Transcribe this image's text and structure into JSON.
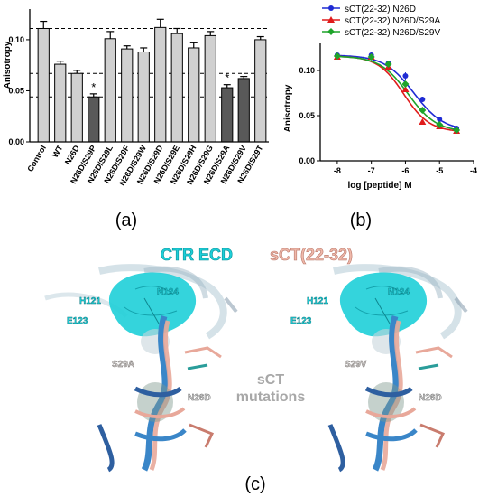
{
  "panel_labels": {
    "a": "(a)",
    "b": "(b)",
    "c": "(c)"
  },
  "chart_data": [
    {
      "type": "bar",
      "ylabel": "Anisotropy",
      "ylim": [
        0,
        0.13
      ],
      "yticks": [
        "0.00",
        "0.05",
        "0.10"
      ],
      "ytick_values": [
        0,
        0.05,
        0.1
      ],
      "categories": [
        "Control",
        "WT",
        "N26D",
        "N26D/S29P",
        "N26D/S29L",
        "N26D/S29F",
        "N26D/S29W",
        "N26D/S29D",
        "N26D/S29E",
        "N26D/S29H",
        "N26D/S29G",
        "N26D/S29A",
        "N26D/S29V",
        "N26D/S29T"
      ],
      "values": [
        0.111,
        0.076,
        0.067,
        0.044,
        0.101,
        0.091,
        0.088,
        0.112,
        0.106,
        0.092,
        0.104,
        0.053,
        0.062,
        0.1
      ],
      "errors": [
        0.007,
        0.003,
        0.003,
        0.003,
        0.007,
        0.003,
        0.004,
        0.008,
        0.005,
        0.005,
        0.004,
        0.003,
        0.002,
        0.003
      ],
      "bar_colors": [
        "#d0d0d0",
        "#d0d0d0",
        "#d0d0d0",
        "#595959",
        "#d0d0d0",
        "#d0d0d0",
        "#d0d0d0",
        "#d0d0d0",
        "#d0d0d0",
        "#d0d0d0",
        "#d0d0d0",
        "#595959",
        "#595959",
        "#d0d0d0"
      ],
      "reference_lines": [
        0.111,
        0.067,
        0.044
      ],
      "significance_marker": "*",
      "significant_categories": [
        "N26D/S29P",
        "N26D/S29A"
      ]
    },
    {
      "type": "line",
      "xlabel": "log [peptide] M",
      "ylabel": "Anisotropy",
      "xlim": [
        -8.5,
        -4
      ],
      "ylim": [
        0,
        0.13
      ],
      "xticks": [
        "-8",
        "-7",
        "-6",
        "-5",
        "-4"
      ],
      "xtick_values": [
        -8,
        -7,
        -6,
        -5,
        -4
      ],
      "yticks": [
        "0.00",
        "0.05",
        "0.10"
      ],
      "ytick_values": [
        0,
        0.05,
        0.1
      ],
      "legend_position": "top",
      "x": [
        -8,
        -7,
        -6.5,
        -6,
        -5.5,
        -5,
        -4.5
      ],
      "series": [
        {
          "name": "sCT(22-32) N26D",
          "color": "#1f2bd4",
          "marker": "circle",
          "values": [
            0.117,
            0.117,
            0.108,
            0.094,
            0.068,
            0.046,
            0.036
          ],
          "errors": [
            0.003,
            0.003,
            0.003,
            0.004,
            0.003,
            0.002,
            0.002
          ],
          "fit": {
            "top": 0.117,
            "bottom": 0.033,
            "logEC50": -5.75,
            "hill": 1.0
          }
        },
        {
          "name": "sCT(22-32) N26D/S29A",
          "color": "#e01b1b",
          "marker": "triangle",
          "values": [
            0.115,
            0.115,
            0.104,
            0.079,
            0.043,
            0.038,
            0.033
          ],
          "errors": [
            0.003,
            0.003,
            0.003,
            0.003,
            0.002,
            0.002,
            0.002
          ],
          "fit": {
            "top": 0.116,
            "bottom": 0.032,
            "logEC50": -6.05,
            "hill": 1.15
          }
        },
        {
          "name": "sCT(22-32) N26D/S29V",
          "color": "#1ea42a",
          "marker": "diamond",
          "values": [
            0.116,
            0.115,
            0.107,
            0.085,
            0.056,
            0.04,
            0.034
          ],
          "errors": [
            0.003,
            0.003,
            0.003,
            0.003,
            0.003,
            0.002,
            0.002
          ],
          "fit": {
            "top": 0.116,
            "bottom": 0.032,
            "logEC50": -5.92,
            "hill": 1.05
          }
        }
      ]
    }
  ],
  "structure": {
    "title_receptor": "CTR ECD",
    "title_peptide": "sCT(22-32)",
    "center_label": [
      "sCT",
      "mutations"
    ],
    "left": {
      "labels": [
        "H121",
        "E123",
        "N124",
        "S29A",
        "N26D"
      ]
    },
    "right": {
      "labels": [
        "H121",
        "E123",
        "N124",
        "S29V",
        "N26D"
      ]
    },
    "colors": {
      "receptor": "#1ecfd8",
      "peptide": "#e8a89a",
      "ribbon": "#3a86c8",
      "label_gray": "#9a9a9a"
    }
  }
}
